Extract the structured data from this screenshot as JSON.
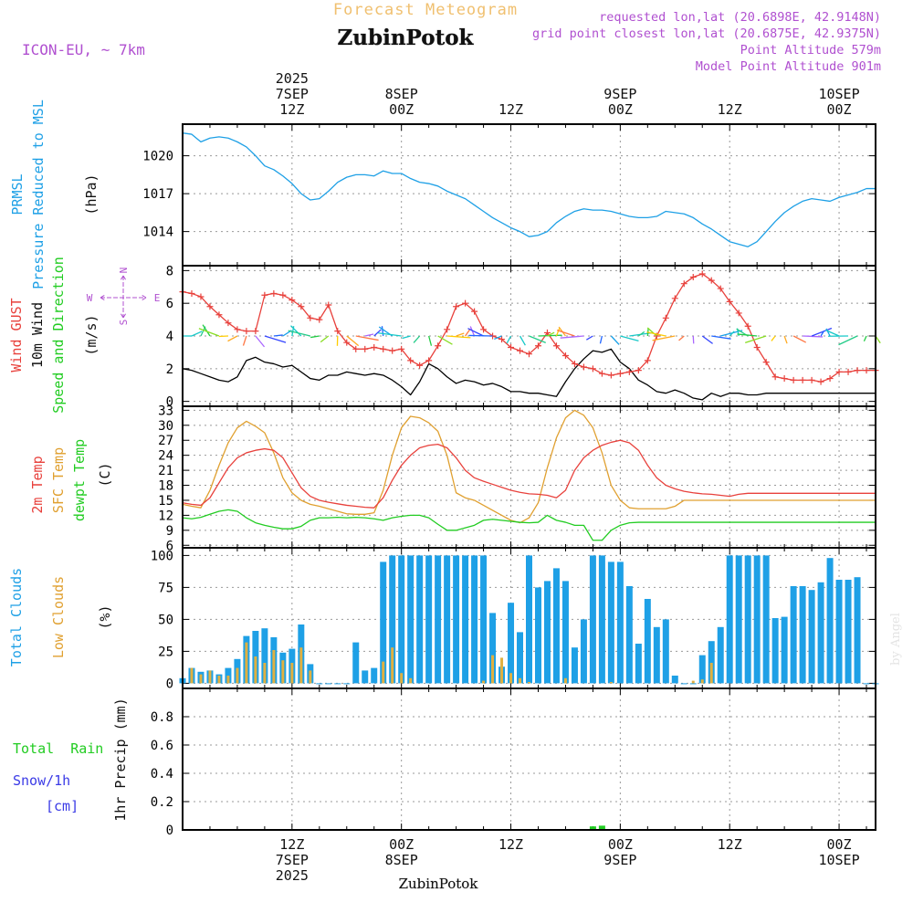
{
  "header": {
    "title": "Forecast Meteogram",
    "location": "ZubinPotok",
    "model": "ICON-EU, ~ 7km",
    "requested": "requested lon,lat (20.6898E, 42.9148N)",
    "closest": "grid point closest lon,lat (20.6875E, 42.9375N)",
    "point_altitude": "Point Altitude 579m",
    "model_altitude": "Model Point Altitude 901m"
  },
  "watermark": "by Angel",
  "footer_location": "ZubinPotok",
  "colors": {
    "pressure": "#1ea0e6",
    "gust": "#e8413c",
    "wind": "#000000",
    "temp": "#e8413c",
    "sfc": "#e0a030",
    "dew": "#22cc22",
    "total_clouds": "#1ea0e6",
    "low_clouds": "#e0b040",
    "rain": "#22cc22",
    "snow": "#3a3ae6",
    "title": "#f0c070",
    "meta": "#b050d0",
    "compass": "#b050d0"
  },
  "time_axis": {
    "top_ticks": [
      {
        "hour": 12,
        "line1": "2025",
        "line2": "7SEP",
        "line3": "12Z"
      },
      {
        "hour": 24,
        "line1": "",
        "line2": "8SEP",
        "line3": "00Z"
      },
      {
        "hour": 36,
        "line1": "",
        "line2": "",
        "line3": "12Z"
      },
      {
        "hour": 48,
        "line1": "",
        "line2": "9SEP",
        "line3": "00Z"
      },
      {
        "hour": 60,
        "line1": "",
        "line2": "",
        "line3": "12Z"
      },
      {
        "hour": 72,
        "line1": "",
        "line2": "10SEP",
        "line3": "00Z"
      }
    ],
    "bottom_ticks": [
      {
        "hour": 12,
        "line1": "12Z",
        "line2": "7SEP",
        "line3": "2025"
      },
      {
        "hour": 24,
        "line1": "00Z",
        "line2": "8SEP",
        "line3": ""
      },
      {
        "hour": 36,
        "line1": "12Z",
        "line2": "",
        "line3": ""
      },
      {
        "hour": 48,
        "line1": "00Z",
        "line2": "9SEP",
        "line3": ""
      },
      {
        "hour": 60,
        "line1": "12Z",
        "line2": "",
        "line3": ""
      },
      {
        "hour": 72,
        "line1": "00Z",
        "line2": "10SEP",
        "line3": ""
      }
    ]
  },
  "chart_data": [
    {
      "type": "line",
      "id": "pressure",
      "labels": [
        "PRMSL",
        "Pressure Reduced to MSL",
        "(hPa)"
      ],
      "ylim": [
        1011.3,
        1022.5
      ],
      "yticks": [
        1014,
        1017,
        1020
      ],
      "x": [
        0,
        1,
        2,
        3,
        4,
        5,
        6,
        7,
        8,
        9,
        10,
        11,
        12,
        13,
        14,
        15,
        16,
        17,
        18,
        19,
        20,
        21,
        22,
        23,
        24,
        25,
        26,
        27,
        28,
        29,
        30,
        31,
        32,
        33,
        34,
        35,
        36,
        37,
        38,
        39,
        40,
        41,
        42,
        43,
        44,
        45,
        46,
        47,
        48,
        49,
        50,
        51,
        52,
        53,
        54,
        55,
        56,
        57,
        58,
        59,
        60,
        61,
        62,
        63,
        64,
        65,
        66,
        67,
        68,
        69,
        70,
        71,
        72,
        73,
        74,
        75,
        76
      ],
      "series": [
        {
          "name": "PRMSL",
          "values": [
            1021.8,
            1021.7,
            1021.1,
            1021.4,
            1021.5,
            1021.4,
            1021.1,
            1020.7,
            1020.0,
            1019.2,
            1018.9,
            1018.4,
            1017.8,
            1017.0,
            1016.5,
            1016.6,
            1017.2,
            1017.9,
            1018.3,
            1018.5,
            1018.5,
            1018.4,
            1018.8,
            1018.6,
            1018.6,
            1018.2,
            1017.9,
            1017.8,
            1017.6,
            1017.2,
            1016.9,
            1016.6,
            1016.1,
            1015.6,
            1015.1,
            1014.7,
            1014.3,
            1014.0,
            1013.6,
            1013.7,
            1014.0,
            1014.7,
            1015.2,
            1015.6,
            1015.8,
            1015.7,
            1015.7,
            1015.6,
            1015.4,
            1015.2,
            1015.1,
            1015.1,
            1015.2,
            1015.6,
            1015.5,
            1015.4,
            1015.1,
            1014.6,
            1014.2,
            1013.7,
            1013.2,
            1013.0,
            1012.8,
            1013.2,
            1014.0,
            1014.8,
            1015.5,
            1016.0,
            1016.4,
            1016.6,
            1016.5,
            1016.4,
            1016.7,
            1016.9,
            1017.1,
            1017.4,
            1017.4
          ]
        }
      ]
    },
    {
      "type": "line",
      "id": "wind",
      "labels": [
        "Wind GUST",
        "10m Wind",
        "Speed and Direction",
        "(m/s)"
      ],
      "compass": [
        "N",
        "S",
        "W",
        "E"
      ],
      "ylim": [
        -0.3,
        8.3
      ],
      "yticks": [
        0,
        2,
        4,
        6,
        8
      ],
      "x": [
        0,
        1,
        2,
        3,
        4,
        5,
        6,
        7,
        8,
        9,
        10,
        11,
        12,
        13,
        14,
        15,
        16,
        17,
        18,
        19,
        20,
        21,
        22,
        23,
        24,
        25,
        26,
        27,
        28,
        29,
        30,
        31,
        32,
        33,
        34,
        35,
        36,
        37,
        38,
        39,
        40,
        41,
        42,
        43,
        44,
        45,
        46,
        47,
        48,
        49,
        50,
        51,
        52,
        53,
        54,
        55,
        56,
        57,
        58,
        59,
        60,
        61,
        62,
        63,
        64,
        65,
        66,
        67,
        68,
        69,
        70,
        71,
        72,
        73,
        74,
        75,
        76
      ],
      "series": [
        {
          "name": "Wind GUST",
          "values": [
            6.7,
            6.6,
            6.4,
            5.8,
            5.3,
            4.8,
            4.4,
            4.3,
            4.3,
            6.5,
            6.6,
            6.5,
            6.2,
            5.8,
            5.1,
            5.0,
            5.9,
            4.3,
            3.6,
            3.2,
            3.2,
            3.3,
            3.2,
            3.1,
            3.2,
            2.5,
            2.2,
            2.5,
            3.4,
            4.4,
            5.8,
            6.0,
            5.5,
            4.4,
            4.0,
            3.8,
            3.3,
            3.1,
            2.9,
            3.4,
            4.2,
            3.4,
            2.8,
            2.3,
            2.1,
            2.0,
            1.7,
            1.6,
            1.7,
            1.8,
            1.9,
            2.5,
            4.0,
            5.1,
            6.3,
            7.2,
            7.6,
            7.8,
            7.4,
            6.9,
            6.1,
            5.4,
            4.6,
            3.3,
            2.4,
            1.5,
            1.4,
            1.3,
            1.3,
            1.3,
            1.2,
            1.4,
            1.8,
            1.8,
            1.9,
            1.9,
            1.9
          ]
        },
        {
          "name": "10m Wind",
          "values": [
            2.0,
            1.9,
            1.7,
            1.5,
            1.3,
            1.2,
            1.5,
            2.5,
            2.7,
            2.4,
            2.3,
            2.1,
            2.2,
            1.8,
            1.4,
            1.3,
            1.6,
            1.6,
            1.8,
            1.7,
            1.6,
            1.7,
            1.6,
            1.3,
            0.9,
            0.4,
            1.2,
            2.3,
            2.0,
            1.5,
            1.1,
            1.3,
            1.2,
            1.0,
            1.1,
            0.9,
            0.6,
            0.6,
            0.5,
            0.5,
            0.4,
            0.3,
            1.2,
            2.0,
            2.6,
            3.1,
            3.0,
            3.2,
            2.4,
            2.0,
            1.3,
            1.0,
            0.6,
            0.5,
            0.7,
            0.5,
            0.2,
            0.1,
            0.5,
            0.3,
            0.5,
            0.5,
            0.4,
            0.4,
            0.5,
            0.5,
            0.5,
            0.5,
            0.5,
            0.5,
            0.5,
            0.5,
            0.5,
            0.5,
            0.5,
            0.5,
            0.5
          ]
        }
      ]
    },
    {
      "type": "line",
      "id": "temperature",
      "labels": [
        "2m Temp",
        "SFC Temp",
        "dewpt Temp",
        "(C)"
      ],
      "ylim": [
        5.5,
        33.8
      ],
      "yticks": [
        6,
        9,
        12,
        15,
        18,
        21,
        24,
        27,
        30,
        33
      ],
      "x": [
        0,
        1,
        2,
        3,
        4,
        5,
        6,
        7,
        8,
        9,
        10,
        11,
        12,
        13,
        14,
        15,
        16,
        17,
        18,
        19,
        20,
        21,
        22,
        23,
        24,
        25,
        26,
        27,
        28,
        29,
        30,
        31,
        32,
        33,
        34,
        35,
        36,
        37,
        38,
        39,
        40,
        41,
        42,
        43,
        44,
        45,
        46,
        47,
        48,
        49,
        50,
        51,
        52,
        53,
        54,
        55,
        56,
        57,
        58,
        59,
        60,
        61,
        62,
        63,
        64,
        65,
        66,
        67,
        68,
        69,
        70,
        71,
        72,
        73,
        74,
        75,
        76
      ],
      "series": [
        {
          "name": "2m Temp",
          "values": [
            14.5,
            14.2,
            14.0,
            15.5,
            18.5,
            21.5,
            23.5,
            24.5,
            25.0,
            25.3,
            25.0,
            23.5,
            20.5,
            17.5,
            15.8,
            15.0,
            14.6,
            14.3,
            14.0,
            13.8,
            13.6,
            13.5,
            15.5,
            19.0,
            22.0,
            24.0,
            25.5,
            26.0,
            26.2,
            25.5,
            23.5,
            21.0,
            19.5,
            18.8,
            18.2,
            17.6,
            17.0,
            16.6,
            16.3,
            16.2,
            16.0,
            15.5,
            17.0,
            21.0,
            23.5,
            25.0,
            26.0,
            26.6,
            27.0,
            26.5,
            25.0,
            22.0,
            19.5,
            18.0,
            17.3,
            16.8,
            16.5,
            16.3,
            16.2,
            16.0,
            15.8,
            16.2,
            16.4,
            16.4,
            16.4,
            16.4,
            16.4,
            16.4,
            16.4,
            16.4,
            16.4,
            16.4,
            16.4,
            16.4,
            16.4,
            16.4,
            16.4
          ]
        },
        {
          "name": "SFC Temp",
          "values": [
            14.2,
            13.8,
            13.5,
            17.0,
            22.0,
            26.5,
            29.5,
            30.8,
            29.8,
            28.5,
            24.5,
            19.5,
            16.5,
            15.0,
            14.2,
            13.8,
            13.3,
            12.8,
            12.3,
            12.2,
            12.2,
            12.5,
            17.0,
            24.0,
            29.5,
            31.8,
            31.5,
            30.5,
            28.8,
            24.0,
            16.5,
            15.5,
            15.0,
            14.0,
            13.0,
            12.0,
            11.0,
            10.5,
            11.5,
            14.5,
            21.5,
            27.5,
            31.5,
            33.0,
            32.0,
            29.5,
            24.5,
            18.0,
            15.0,
            13.5,
            13.3,
            13.3,
            13.3,
            13.3,
            13.8,
            15.0,
            15.0,
            15.0,
            15.0,
            15.0,
            15.0,
            15.0,
            15.0,
            15.0,
            15.0,
            15.0,
            15.0,
            15.0,
            15.0,
            15.0,
            15.0,
            15.0,
            15.0,
            15.0,
            15.0,
            15.0,
            15.0
          ]
        },
        {
          "name": "dewpt Temp",
          "values": [
            11.5,
            11.3,
            11.6,
            12.2,
            12.8,
            13.1,
            12.8,
            11.5,
            10.5,
            10.0,
            9.6,
            9.3,
            9.3,
            9.8,
            11.0,
            11.5,
            11.5,
            11.6,
            11.5,
            11.6,
            11.5,
            11.3,
            11.0,
            11.5,
            11.8,
            12.0,
            12.0,
            11.5,
            10.2,
            9.0,
            9.0,
            9.5,
            10.0,
            11.0,
            11.2,
            11.0,
            10.8,
            10.6,
            10.5,
            10.6,
            12.0,
            11.0,
            10.6,
            10.0,
            10.0,
            7.0,
            7.0,
            9.0,
            10.0,
            10.5,
            10.6,
            10.6,
            10.6,
            10.6,
            10.6,
            10.6,
            10.6,
            10.6,
            10.6,
            10.6,
            10.6,
            10.6,
            10.6,
            10.6,
            10.6,
            10.6,
            10.6,
            10.6,
            10.6,
            10.6,
            10.6,
            10.6,
            10.6,
            10.6,
            10.6,
            10.6,
            10.6
          ]
        }
      ]
    },
    {
      "type": "bar",
      "id": "clouds",
      "labels": [
        "Total Clouds",
        "Low Clouds",
        "(%)"
      ],
      "ylim": [
        -4,
        106
      ],
      "yticks": [
        0,
        25,
        50,
        75,
        100
      ],
      "x": [
        0,
        1,
        2,
        3,
        4,
        5,
        6,
        7,
        8,
        9,
        10,
        11,
        12,
        13,
        14,
        15,
        16,
        17,
        18,
        19,
        20,
        21,
        22,
        23,
        24,
        25,
        26,
        27,
        28,
        29,
        30,
        31,
        32,
        33,
        34,
        35,
        36,
        37,
        38,
        39,
        40,
        41,
        42,
        43,
        44,
        45,
        46,
        47,
        48,
        49,
        50,
        51,
        52,
        53,
        54,
        55,
        56,
        57,
        58,
        59,
        60,
        61,
        62,
        63,
        64,
        65,
        66,
        67,
        68,
        69,
        70,
        71,
        72,
        73,
        74,
        75,
        76
      ],
      "series": [
        {
          "name": "Total Clouds",
          "values": [
            4,
            12,
            9,
            10,
            7,
            12,
            19,
            37,
            41,
            43,
            36,
            24,
            27,
            46,
            15,
            0,
            0,
            0,
            0,
            32,
            10,
            12,
            95,
            100,
            100,
            100,
            100,
            100,
            100,
            100,
            100,
            100,
            100,
            100,
            55,
            13,
            63,
            40,
            100,
            75,
            80,
            90,
            80,
            28,
            50,
            100,
            100,
            95,
            95,
            76,
            31,
            66,
            44,
            50,
            6,
            0,
            0,
            22,
            33,
            44,
            100,
            100,
            100,
            100,
            100,
            51,
            52,
            76,
            76,
            73,
            79,
            98,
            81,
            81,
            83,
            0,
            0
          ]
        },
        {
          "name": "Low Clouds",
          "values": [
            0,
            12,
            7,
            10,
            6,
            6,
            12,
            32,
            21,
            16,
            26,
            18,
            16,
            28,
            10,
            0,
            0,
            0,
            0,
            0,
            0,
            0,
            17,
            28,
            8,
            4,
            0,
            0,
            0,
            0,
            0,
            0,
            0,
            2,
            22,
            20,
            8,
            4,
            1,
            0,
            0,
            0,
            4,
            0,
            0,
            0,
            0,
            1,
            0,
            0,
            0,
            0,
            0,
            0,
            0,
            0,
            2,
            3,
            16,
            0,
            0,
            0,
            0,
            0,
            0,
            0,
            0,
            0,
            0,
            0,
            0,
            0,
            0,
            0,
            0,
            0,
            0
          ]
        }
      ]
    },
    {
      "type": "bar",
      "id": "precip",
      "labels": [
        "Total  Rain",
        "Snow/1h",
        "[cm]",
        "1hr Precip (mm)"
      ],
      "ylim": [
        0,
        1.0
      ],
      "yticks": [
        0,
        0.2,
        0.4,
        0.6,
        0.8
      ],
      "ytick_labels": [
        "0",
        "0.2",
        "0.4",
        "0.6",
        "0.8"
      ],
      "x": [
        36,
        45,
        46
      ],
      "series": [
        {
          "name": "Total Rain",
          "values": [
            0.005,
            0.025,
            0.03
          ]
        }
      ]
    }
  ]
}
